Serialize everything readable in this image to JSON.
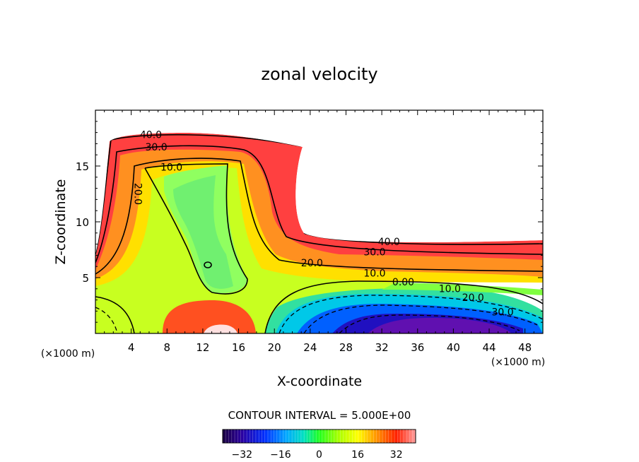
{
  "chart_data": {
    "type": "contour",
    "title": "zonal velocity",
    "xlabel": "X-coordinate",
    "ylabel": "Z-coordinate",
    "x_unit_label": "(×1000 m)",
    "z_unit_label": "(×1000 m)",
    "xlim": [
      0,
      50
    ],
    "ylim": [
      0,
      20
    ],
    "x_ticks": [
      "4",
      "8",
      "12",
      "16",
      "20",
      "24",
      "28",
      "32",
      "36",
      "40",
      "44",
      "48"
    ],
    "x_tick_values": [
      4,
      8,
      12,
      16,
      20,
      24,
      28,
      32,
      36,
      40,
      44,
      48
    ],
    "y_ticks": [
      "5",
      "10",
      "15"
    ],
    "y_tick_values": [
      5,
      10,
      15
    ],
    "contour_interval_text": "CONTOUR INTERVAL = 5.000E+00",
    "colorbar": {
      "range": [
        -40,
        40
      ],
      "ticks": [
        "−32",
        "−16",
        "0",
        "16",
        "32"
      ],
      "tick_values": [
        -32,
        -16,
        0,
        16,
        32
      ]
    },
    "contour_labels": [
      {
        "text": "40.0",
        "x": 6.2,
        "z": 17.5
      },
      {
        "text": "30.0",
        "x": 6.8,
        "z": 16.4
      },
      {
        "text": "10.0",
        "x": 8.5,
        "z": 14.6
      },
      {
        "text": "20.0",
        "x": 4.4,
        "z": 12.5,
        "rotate": 90
      },
      {
        "text": "40.0",
        "x": 32.8,
        "z": 7.9
      },
      {
        "text": "30.0",
        "x": 31.2,
        "z": 7.0
      },
      {
        "text": "20.0",
        "x": 24.2,
        "z": 6.0
      },
      {
        "text": "10.0",
        "x": 31.2,
        "z": 5.1
      },
      {
        "text": "0.00",
        "x": 34.4,
        "z": 4.3
      },
      {
        "text": "10.0",
        "x": 39.6,
        "z": 3.7
      },
      {
        "text": "20.0",
        "x": 42.2,
        "z": 2.9
      },
      {
        "text": "30.0",
        "x": 45.5,
        "z": 1.6
      }
    ]
  }
}
